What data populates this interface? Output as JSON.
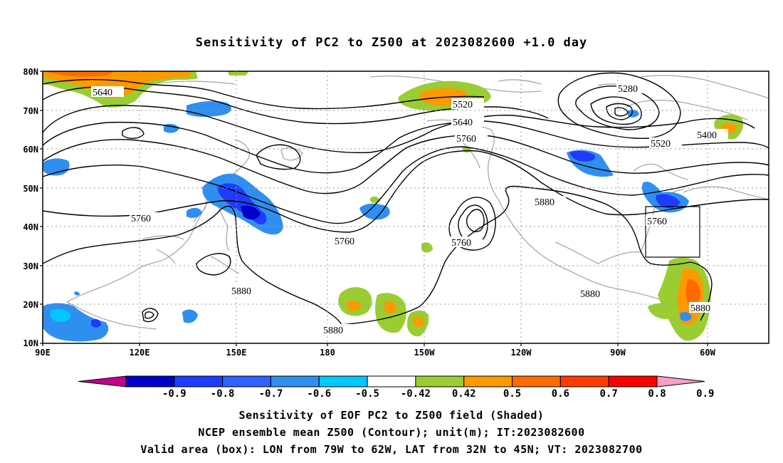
{
  "title": "Sensitivity of PC2 to Z500 at 2023082600 +1.0 day",
  "lat_labels": [
    "80N",
    "70N",
    "60N",
    "50N",
    "40N",
    "30N",
    "20N",
    "10N"
  ],
  "lon_labels": [
    "90E",
    "120E",
    "150E",
    "180",
    "150W",
    "120W",
    "90W",
    "60W"
  ],
  "contour_labels": [
    "5640",
    "5520",
    "5640",
    "5760",
    "5280",
    "5400",
    "5520",
    "5760",
    "5760",
    "5880",
    "5760",
    "5760",
    "5880",
    "5880",
    "5880",
    "5880"
  ],
  "colorbar": {
    "ticks": [
      "-0.9",
      "-0.8",
      "-0.7",
      "-0.6",
      "-0.5",
      "-0.42",
      "0.42",
      "0.5",
      "0.6",
      "0.7",
      "0.8",
      "0.9"
    ],
    "colors": [
      "#c3008c",
      "#0000c8",
      "#1e3cff",
      "#2f62ff",
      "#2f8ff0",
      "#00c8ff",
      "#ffffff",
      "#9acd32",
      "#ff9900",
      "#ff6a00",
      "#ff3c00",
      "#ff0000",
      "#f5a0c8"
    ]
  },
  "valid_box": {
    "lon_min": -79,
    "lon_max": -62,
    "lat_min": 32,
    "lat_max": 45
  },
  "captions": {
    "line1": "Sensitivity of EOF PC2 to Z500 field (Shaded)",
    "line2": "NCEP ensemble mean Z500 (Contour); unit(m); IT:2023082600",
    "line3": "Valid area (box): LON from 79W to 62W, LAT from 32N to 45N; VT: 2023082700"
  }
}
